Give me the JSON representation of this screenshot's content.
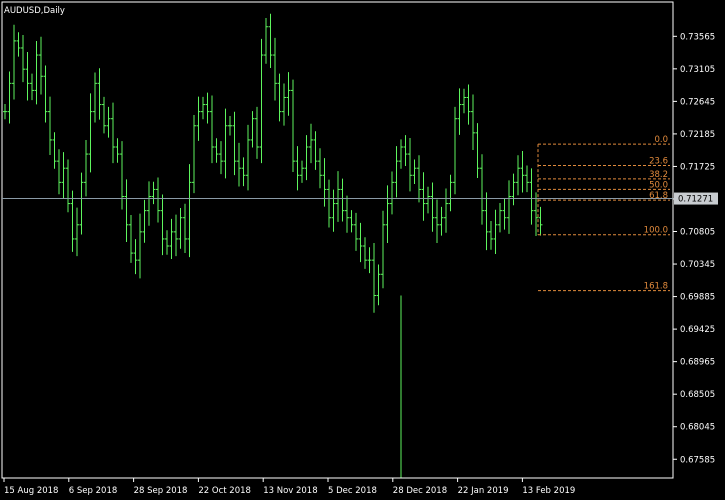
{
  "chart_data": {
    "type": "bar",
    "title": "AUDUSD,Daily",
    "symbol": "AUDUSD",
    "timeframe": "Daily",
    "ylim": [
      0.6732,
      0.7405
    ],
    "grid": false,
    "y_ticks": [
      "0.73565",
      "0.73105",
      "0.72645",
      "0.72185",
      "0.71725",
      "0.71265",
      "0.70805",
      "0.70345",
      "0.69885",
      "0.69425",
      "0.68965",
      "0.68505",
      "0.68045",
      "0.67585"
    ],
    "x_ticks": [
      "15 Aug 2018",
      "6 Sep 2018",
      "28 Sep 2018",
      "22 Oct 2018",
      "13 Nov 2018",
      "5 Dec 2018",
      "28 Dec 2018",
      "22 Jan 2019",
      "13 Feb 2019"
    ],
    "current_price": "0.71271",
    "fibonacci": {
      "start_date": "11 Feb 2019",
      "end_date": "28 Feb 2019",
      "levels": [
        {
          "label": "0.0",
          "price": 0.7204
        },
        {
          "label": "23.6",
          "price": 0.71738
        },
        {
          "label": "38.2",
          "price": 0.7155
        },
        {
          "label": "50.0",
          "price": 0.714
        },
        {
          "label": "61.8",
          "price": 0.71249
        },
        {
          "label": "100.0",
          "price": 0.7076
        },
        {
          "label": "161.8",
          "price": 0.69969
        }
      ]
    },
    "closes": [
      0.725,
      0.729,
      0.735,
      0.734,
      0.731,
      0.729,
      0.728,
      0.733,
      0.73,
      0.725,
      0.721,
      0.718,
      0.715,
      0.717,
      0.712,
      0.707,
      0.709,
      0.715,
      0.719,
      0.725,
      0.729,
      0.726,
      0.723,
      0.724,
      0.72,
      0.719,
      0.713,
      0.709,
      0.705,
      0.704,
      0.708,
      0.711,
      0.713,
      0.714,
      0.711,
      0.707,
      0.706,
      0.708,
      0.707,
      0.71,
      0.707,
      0.715,
      0.723,
      0.725,
      0.726,
      0.725,
      0.72,
      0.719,
      0.718,
      0.723,
      0.723,
      0.718,
      0.717,
      0.716,
      0.721,
      0.724,
      0.72,
      0.733,
      0.737,
      0.733,
      0.729,
      0.725,
      0.727,
      0.728,
      0.718,
      0.716,
      0.717,
      0.72,
      0.721,
      0.718,
      0.716,
      0.714,
      0.71,
      0.712,
      0.714,
      0.711,
      0.71,
      0.709,
      0.707,
      0.706,
      0.704,
      0.704,
      0.699,
      0.702,
      0.709,
      0.712,
      0.715,
      0.718,
      0.72,
      0.719,
      0.716,
      0.717,
      0.714,
      0.712,
      0.713,
      0.71,
      0.709,
      0.71,
      0.712,
      0.715,
      0.724,
      0.726,
      0.727,
      0.725,
      0.722,
      0.717,
      0.711,
      0.708,
      0.707,
      0.709,
      0.711,
      0.71,
      0.713,
      0.715,
      0.717,
      0.716,
      0.715,
      0.711,
      0.71,
      0.709
    ]
  }
}
